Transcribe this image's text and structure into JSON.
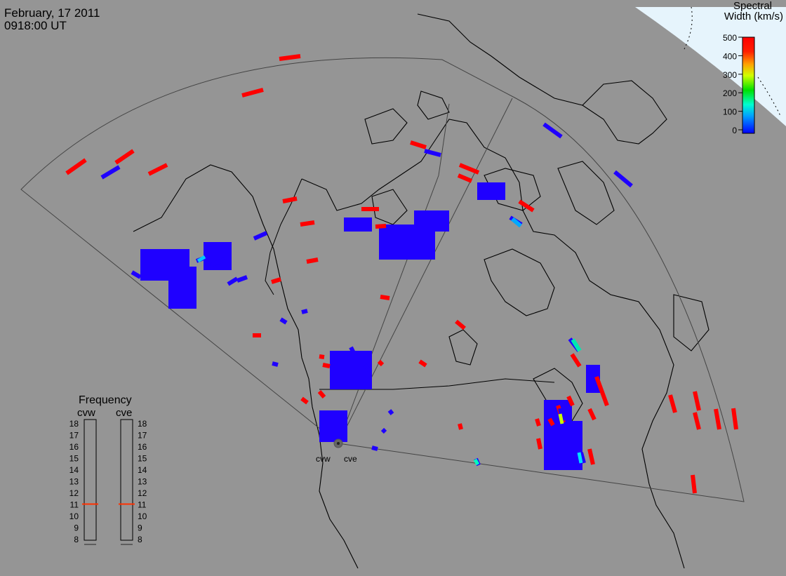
{
  "header": {
    "date": "February, 17 2011",
    "time": "0918:00 UT"
  },
  "colorbar": {
    "title_line1": "Spectral",
    "title_line2": "Width (km/s)",
    "ticks": [
      "500",
      "400",
      "300",
      "200",
      "100",
      "0"
    ]
  },
  "frequency_panel": {
    "title": "Frequency",
    "left_station": "cvw",
    "right_station": "cve",
    "scale": [
      "18",
      "17",
      "16",
      "15",
      "14",
      "13",
      "12",
      "11",
      "10",
      "9",
      "8"
    ],
    "left_value_mhz": 11,
    "right_value_mhz": 11
  },
  "radar_sites": {
    "west": "cvw",
    "east": "cve"
  },
  "colors": {
    "background": "#959595",
    "sky": "#e6f4fc",
    "low_width": "#1f00ff",
    "high_width": "#ff0000",
    "freq_marker": "#ff3000"
  }
}
